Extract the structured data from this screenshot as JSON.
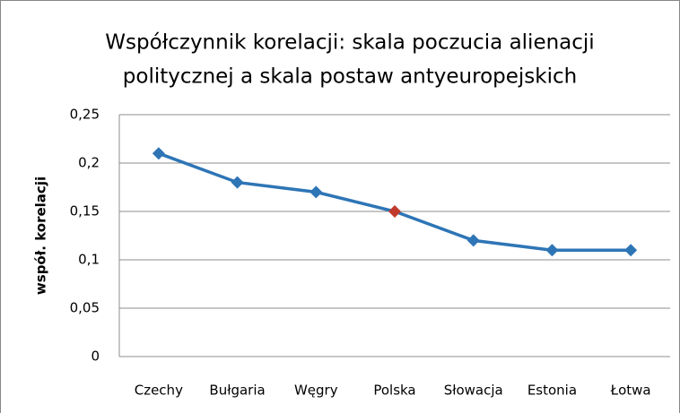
{
  "chart_data": {
    "type": "line",
    "title": [
      "Współczynnik korelacji: skala poczucia alienacji",
      "politycznej a skala postaw antyeuropejskich"
    ],
    "ylabel": "współ. korelacji",
    "categories": [
      "Czechy",
      "Bułgaria",
      "Węgry",
      "Polska",
      "Słowacja",
      "Estonia",
      "Łotwa"
    ],
    "series": [
      {
        "color": "#2e75b6",
        "values": [
          0.21,
          0.18,
          0.17,
          0.15,
          0.12,
          0.11,
          0.11
        ],
        "marker_colors": [
          "#2e75b6",
          "#2e75b6",
          "#2e75b6",
          "#c0392b",
          "#2e75b6",
          "#2e75b6",
          "#2e75b6"
        ]
      }
    ],
    "ylim": [
      0,
      0.25
    ],
    "yticks": [
      0,
      {
        "value": 0.05,
        "label": "0,05"
      },
      {
        "value": 0.1,
        "label": "0,1"
      },
      {
        "value": 0.15,
        "label": "0,15"
      },
      {
        "value": 0.2,
        "label": "0,2"
      },
      {
        "value": 0.25,
        "label": "0,25"
      }
    ],
    "grid": true
  }
}
